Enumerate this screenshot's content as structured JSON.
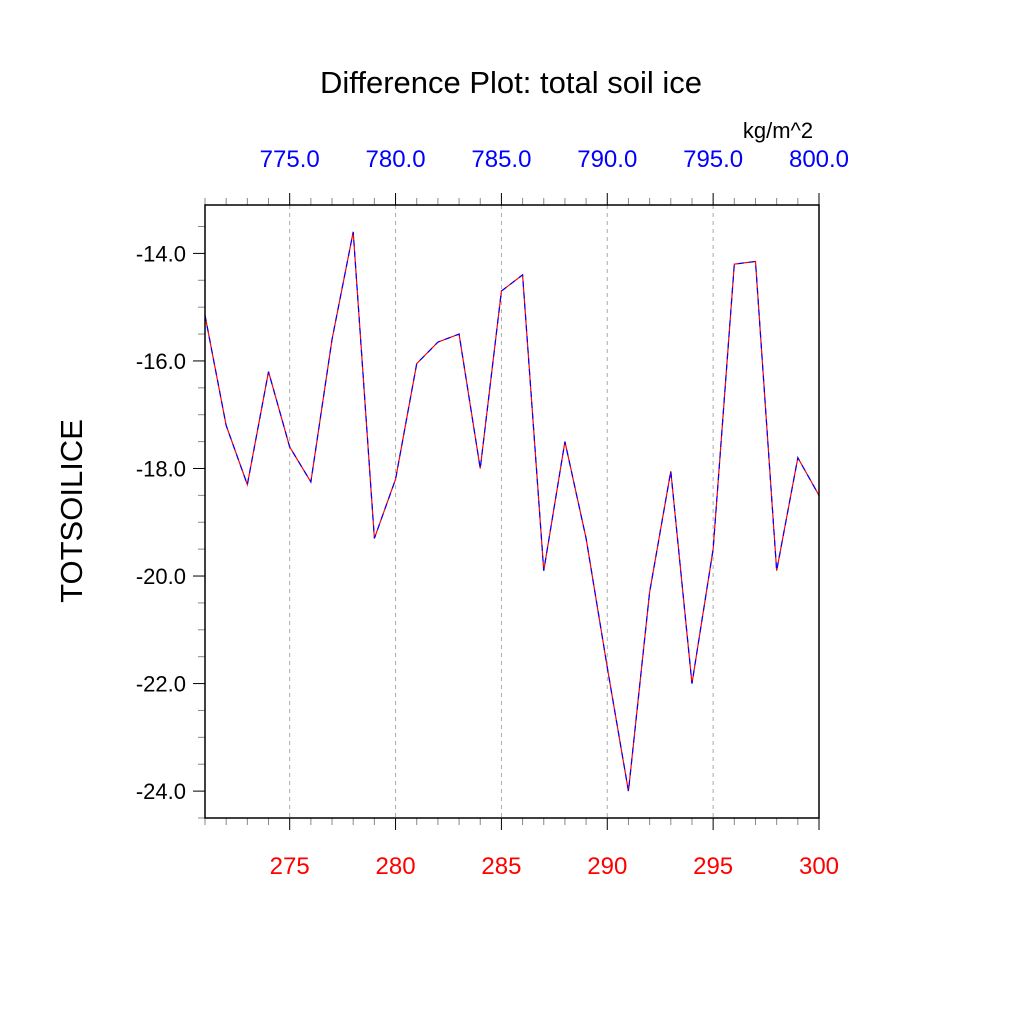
{
  "chart_data": {
    "type": "line",
    "title": "Difference Plot: total soil ice",
    "units": "kg/m^2",
    "ylabel": "TOTSOILICE",
    "xlabel": "",
    "xlim": [
      271,
      300
    ],
    "ylim": [
      -24.5,
      -13.1
    ],
    "bottom_axis": {
      "color": "#ff0000",
      "ticks": [
        275,
        280,
        285,
        290,
        295,
        300
      ],
      "tick_labels": [
        "275",
        "280",
        "285",
        "290",
        "295",
        "300"
      ]
    },
    "top_axis": {
      "color": "#0000ff",
      "offset": 500,
      "ticks": [
        775,
        780,
        785,
        790,
        795,
        800
      ],
      "tick_labels": [
        "775.0",
        "780.0",
        "785.0",
        "790.0",
        "795.0",
        "800.0"
      ]
    },
    "y_ticks": [
      -14,
      -16,
      -18,
      -20,
      -22,
      -24
    ],
    "y_tick_labels": [
      "-14.0",
      "-16.0",
      "-18.0",
      "-20.0",
      "-22.0",
      "-24.0"
    ],
    "grid": "vertical dashed at major x ticks",
    "x": [
      271,
      272,
      273,
      274,
      275,
      276,
      277,
      278,
      279,
      280,
      281,
      282,
      283,
      284,
      285,
      286,
      287,
      288,
      289,
      290,
      291,
      292,
      293,
      294,
      295,
      296,
      297,
      298,
      299,
      300
    ],
    "series": [
      {
        "color": "#ff0000",
        "style": "solid",
        "values": [
          -15.15,
          -17.2,
          -18.3,
          -16.2,
          -17.6,
          -18.25,
          -15.6,
          -13.6,
          -19.3,
          -18.2,
          -16.05,
          -15.65,
          -15.5,
          -18.0,
          -14.7,
          -14.4,
          -19.9,
          -17.5,
          -19.3,
          -21.7,
          -24.0,
          -20.3,
          -18.05,
          -22.0,
          -19.5,
          -14.2,
          -14.15,
          -19.9,
          -17.8,
          -18.5
        ]
      },
      {
        "color": "#0000ff",
        "style": "dashed",
        "values": [
          -15.15,
          -17.2,
          -18.3,
          -16.2,
          -17.6,
          -18.25,
          -15.6,
          -13.6,
          -19.3,
          -18.2,
          -16.05,
          -15.65,
          -15.5,
          -18.0,
          -14.7,
          -14.4,
          -19.9,
          -17.5,
          -19.3,
          -21.7,
          -24.0,
          -20.3,
          -18.05,
          -22.0,
          -19.5,
          -14.2,
          -14.15,
          -19.9,
          -17.8,
          -18.5
        ]
      }
    ]
  }
}
